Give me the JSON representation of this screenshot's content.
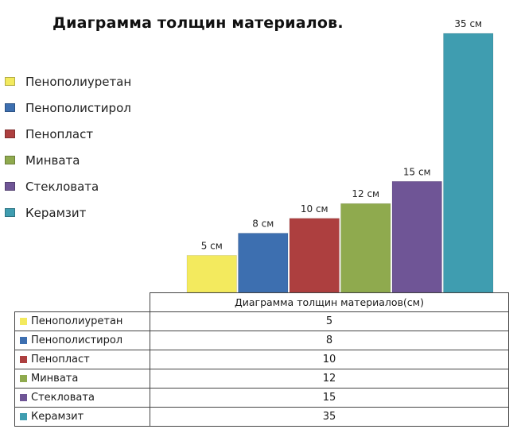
{
  "chart_data": {
    "type": "bar",
    "title": "Диаграмма толщин материалов.",
    "categories": [
      "Пенополиуретан",
      "Пенополистирол",
      "Пенопласт",
      "Минвата",
      "Стекловата",
      "Керамзит"
    ],
    "values": [
      5,
      8,
      10,
      12,
      15,
      35
    ],
    "data_labels": [
      "5 см",
      "8 см",
      "10 см",
      "12 см",
      "15 см",
      "35 см"
    ],
    "colors": [
      "#f3ea5e",
      "#3d6fb0",
      "#ad3f3f",
      "#8faa4e",
      "#6f5596",
      "#3f9db0"
    ],
    "ylim": [
      0,
      35
    ],
    "legend_position": "left",
    "grid": false
  },
  "table": {
    "header": "Диаграмма толщин материалов(см)",
    "rows": [
      {
        "label": "Пенополиуретан",
        "value": "5"
      },
      {
        "label": "Пенополистирол",
        "value": "8"
      },
      {
        "label": "Пенопласт",
        "value": "10"
      },
      {
        "label": "Минвата",
        "value": "12"
      },
      {
        "label": "Стекловата",
        "value": "15"
      },
      {
        "label": "Керамзит",
        "value": "35"
      }
    ]
  }
}
